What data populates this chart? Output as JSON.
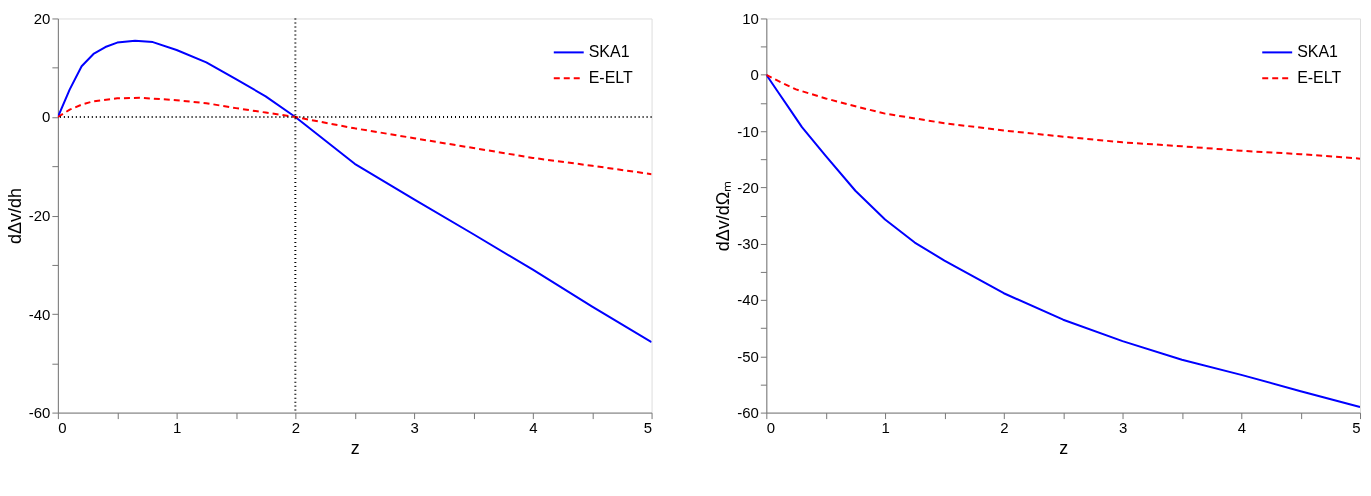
{
  "chart_data": [
    {
      "type": "line",
      "xlabel": "z",
      "ylabel": "dΔv/dh",
      "xlim": [
        0,
        5
      ],
      "ylim": [
        -60,
        20
      ],
      "xticks": [
        0,
        {
          "value": 0.5,
          "label": null
        },
        1,
        {
          "value": 1.5,
          "label": null
        },
        2,
        {
          "value": 2.5,
          "label": null
        },
        3,
        {
          "value": 3.5,
          "label": null
        },
        4,
        {
          "value": 4.5,
          "label": null
        },
        5
      ],
      "yticks": [
        -60,
        {
          "value": -50,
          "label": null
        },
        -40,
        {
          "value": -30,
          "label": null
        },
        -20,
        {
          "value": -10,
          "label": null
        },
        0,
        {
          "value": 10,
          "label": null
        },
        20
      ],
      "grid": false,
      "legend": "top right",
      "marker": "none",
      "ref_lines": [
        {
          "axis": "x",
          "value": 2,
          "color": "#000000",
          "line_style": "dotted"
        },
        {
          "axis": "y",
          "value": 0,
          "color": "#000000",
          "line_style": "dotted"
        }
      ],
      "series": [
        {
          "name": "SKA1",
          "color": "#0000ff",
          "line_style": "solid",
          "x": [
            0,
            0.1,
            0.2,
            0.3,
            0.4,
            0.5,
            0.65,
            0.8,
            1,
            1.25,
            1.5,
            1.75,
            2,
            2.5,
            3,
            3.5,
            4,
            4.5,
            5
          ],
          "values": [
            0,
            5.6,
            10.3,
            12.8,
            14.2,
            15.1,
            15.5,
            15.2,
            13.6,
            11.1,
            7.7,
            4.2,
            0,
            -9.5,
            -16.7,
            -23.8,
            -31,
            -38.5,
            -45.7
          ]
        },
        {
          "name": "E-ELT",
          "color": "#ff0000",
          "line_style": "dashed",
          "x": [
            0,
            0.1,
            0.2,
            0.3,
            0.5,
            0.7,
            1,
            1.25,
            1.5,
            1.75,
            2,
            2.5,
            3,
            3.5,
            4,
            4.5,
            5
          ],
          "values": [
            0,
            1.5,
            2.5,
            3.2,
            3.8,
            3.9,
            3.4,
            2.8,
            1.8,
            0.9,
            0,
            -2.3,
            -4.3,
            -6.3,
            -8.3,
            -9.9,
            -11.6
          ]
        }
      ]
    },
    {
      "type": "line",
      "xlabel": "z",
      "ylabel": "dΔv/dΩₘ",
      "xlim": [
        0,
        5
      ],
      "ylim": [
        -60,
        10
      ],
      "xticks": [
        0,
        {
          "value": 0.5,
          "label": null
        },
        1,
        {
          "value": 1.5,
          "label": null
        },
        2,
        {
          "value": 2.5,
          "label": null
        },
        3,
        {
          "value": 3.5,
          "label": null
        },
        4,
        {
          "value": 4.5,
          "label": null
        },
        5
      ],
      "yticks": [
        -60,
        {
          "value": -55,
          "label": null
        },
        -50,
        {
          "value": -45,
          "label": null
        },
        -40,
        {
          "value": -35,
          "label": null
        },
        -30,
        {
          "value": -25,
          "label": null
        },
        -20,
        {
          "value": -15,
          "label": null
        },
        -10,
        {
          "value": -5,
          "label": null
        },
        0,
        {
          "value": 5,
          "label": null
        },
        10
      ],
      "grid": false,
      "legend": "top right",
      "marker": "none",
      "series": [
        {
          "name": "SKA1",
          "color": "#0000ff",
          "line_style": "solid",
          "x": [
            0,
            0.1,
            0.2,
            0.3,
            0.5,
            0.75,
            1,
            1.25,
            1.5,
            2,
            2.5,
            3,
            3.5,
            4,
            4.5,
            5
          ],
          "values": [
            0,
            -3.1,
            -6.2,
            -9.3,
            -14.4,
            -20.6,
            -25.7,
            -29.8,
            -33,
            -38.8,
            -43.5,
            -47.3,
            -50.6,
            -53.3,
            -56.2,
            -59
          ]
        },
        {
          "name": "E-ELT",
          "color": "#ff0000",
          "line_style": "dashed",
          "x": [
            0,
            0.1,
            0.25,
            0.5,
            0.75,
            1,
            1.5,
            2,
            2.5,
            3,
            3.5,
            4,
            4.5,
            5
          ],
          "values": [
            0,
            -1.1,
            -2.6,
            -4.2,
            -5.6,
            -6.9,
            -8.6,
            -9.9,
            -11,
            -12,
            -12.7,
            -13.5,
            -14.1,
            -14.9
          ]
        }
      ]
    }
  ]
}
